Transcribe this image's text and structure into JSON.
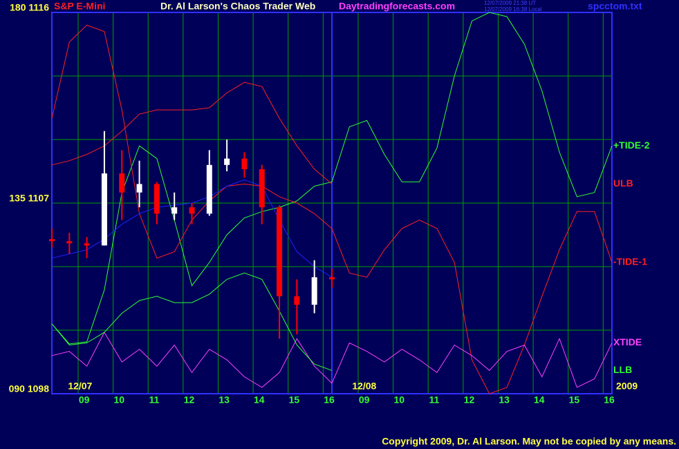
{
  "chart_data": {
    "type": "candlestick",
    "instrument": "S&P E-Mini",
    "title": "Dr. Al Larson's Chaos Trader Web",
    "website": "Daytradingforecasts.com",
    "timestamps": [
      "12/07/2009 21:38 UT",
      "12/07/2009 16:38 Local"
    ],
    "file": "spcctom.txt",
    "copyright": "Copyright 2009, Dr. Al Larson. May not be copied by any means.",
    "dates": [
      "12/07",
      "12/08",
      "2009"
    ],
    "categories": [
      null,
      null,
      "09",
      null,
      "10",
      null,
      "11",
      null,
      "12",
      null,
      "13",
      null,
      "14",
      null,
      "15",
      null,
      "16",
      null,
      "09",
      null,
      "10",
      null,
      "11",
      null,
      "12",
      null,
      "13",
      null,
      "14",
      null,
      "15",
      null,
      "16"
    ],
    "ylim": [
      1098,
      1116
    ],
    "yticks": [
      {
        "value": 1098,
        "label": "090  1098"
      },
      {
        "value": 1101,
        "label": null
      },
      {
        "value": 1104,
        "label": null
      },
      {
        "value": 1107,
        "label": "135  1107"
      },
      {
        "value": 1110,
        "label": null
      },
      {
        "value": 1113,
        "label": null
      },
      {
        "value": 1116,
        "label": "180  1116"
      }
    ],
    "grid": true,
    "up_color": "#ffffff",
    "down_color": "#ff0000",
    "ohlc": {
      "open": [
        1105.3,
        1105.2,
        1105.1,
        1105.0,
        1108.4,
        1107.5,
        1107.9,
        1106.5,
        1106.8,
        1106.5,
        1108.8,
        1109.1,
        1108.6,
        1106.8,
        1102.6,
        1102.2,
        1103.5,
        null,
        null,
        null,
        null,
        null,
        null,
        null,
        null,
        null,
        null,
        null,
        null,
        null,
        null,
        null,
        null
      ],
      "high": [
        1105.8,
        1105.6,
        1105.4,
        1110.4,
        1109.5,
        1109.0,
        1108.0,
        1107.5,
        1107.0,
        1109.5,
        1110.0,
        1109.4,
        1108.8,
        1106.9,
        1103.4,
        1104.3,
        1103.9,
        null,
        null,
        null,
        null,
        null,
        null,
        null,
        null,
        null,
        null,
        null,
        null,
        null,
        null,
        null,
        null
      ],
      "low": [
        1104.9,
        1104.6,
        1104.4,
        1105.0,
        1106.2,
        1106.8,
        1106.0,
        1106.2,
        1106.0,
        1106.4,
        1108.5,
        1108.2,
        1106.0,
        1100.6,
        1100.8,
        1101.8,
        1103.0,
        null,
        null,
        null,
        null,
        null,
        null,
        null,
        null,
        null,
        null,
        null,
        null,
        null,
        null,
        null,
        null
      ],
      "close": [
        1105.2,
        1105.1,
        1105.0,
        1108.4,
        1107.5,
        1107.9,
        1106.5,
        1106.8,
        1106.5,
        1108.8,
        1109.1,
        1108.6,
        1106.8,
        1102.6,
        1102.2,
        1103.5,
        1103.4,
        null,
        null,
        null,
        null,
        null,
        null,
        null,
        null,
        null,
        null,
        null,
        null,
        null,
        null,
        null,
        null
      ]
    },
    "series": [
      {
        "name": "+TIDE-2",
        "color": "#33ff33",
        "values": [
          1101.3,
          1100.35,
          1100.45,
          1102.9,
          1107.5,
          1109.7,
          1109.1,
          1106.2,
          1103.1,
          1104.2,
          1105.5,
          1106.3,
          1106.6,
          1106.8,
          1107.1,
          1107.8,
          1108.0,
          1110.6,
          1110.9,
          1109.3,
          1108.0,
          1108.0,
          1109.6,
          1113.0,
          1115.6,
          1116.0,
          1115.8,
          1114.5,
          1112.3,
          1109.4,
          1107.3,
          1107.5,
          1109.7
        ]
      },
      {
        "name": "ULB",
        "color": "#ff2020",
        "values": [
          1108.8,
          1109.0,
          1109.3,
          1109.7,
          1110.4,
          1111.2,
          1111.4,
          1111.4,
          1111.4,
          1111.5,
          1112.2,
          1112.7,
          1112.5,
          1111.0,
          1109.7,
          1108.6,
          1107.9,
          null,
          null,
          null,
          null,
          null,
          null,
          null,
          null,
          null,
          null,
          null,
          null,
          null,
          null,
          null,
          null
        ]
      },
      {
        "name": "-TIDE-1",
        "color": "#ff2020",
        "values": [
          1111.0,
          1114.6,
          1115.4,
          1115.1,
          1111.4,
          1106.5,
          1104.4,
          1104.7,
          1106.2,
          1107.1,
          1107.8,
          1107.9,
          1107.8,
          1107.3,
          1107.0,
          1106.5,
          1105.8,
          1103.7,
          1103.5,
          1104.8,
          1105.8,
          1106.2,
          1105.8,
          1104.2,
          1099.6,
          1098.0,
          1098.3,
          1100.3,
          1102.6,
          1104.8,
          1106.6,
          1106.6,
          1104.2
        ]
      },
      {
        "name": "XTIDE",
        "color": "#ff40ff",
        "values": [
          1099.8,
          1100.0,
          1099.3,
          1100.9,
          1099.5,
          1100.1,
          1099.3,
          1100.3,
          1099.0,
          1100.1,
          1099.6,
          1098.8,
          1098.3,
          1099.0,
          1100.6,
          1099.3,
          1098.5,
          1100.4,
          1100.0,
          1099.5,
          1100.1,
          1099.6,
          1099.0,
          1100.3,
          1099.8,
          1099.1,
          1100.0,
          1100.3,
          1098.8,
          1100.6,
          1098.3,
          1098.7,
          1100.4
        ]
      },
      {
        "name": "LLB",
        "color": "#33ff33",
        "values": [
          1101.3,
          1100.3,
          1100.4,
          1100.9,
          1101.8,
          1102.4,
          1102.6,
          1102.3,
          1102.3,
          1102.7,
          1103.4,
          1103.7,
          1103.4,
          1101.9,
          1100.3,
          1099.4,
          1099.1,
          null,
          null,
          null,
          null,
          null,
          null,
          null,
          null,
          null,
          null,
          null,
          null,
          null,
          null,
          null,
          null
        ]
      },
      {
        "color": "#2020ff",
        "values": [
          1104.4,
          1104.6,
          1104.8,
          1105.3,
          1106.0,
          1106.5,
          1106.8,
          1106.9,
          1107.0,
          1107.3,
          1107.8,
          1108.1,
          1107.8,
          1106.2,
          1104.7,
          1104.0,
          1103.5,
          null,
          null,
          null,
          null,
          null,
          null,
          null,
          null,
          null,
          null,
          null,
          null,
          null,
          null,
          null,
          null
        ]
      }
    ]
  }
}
